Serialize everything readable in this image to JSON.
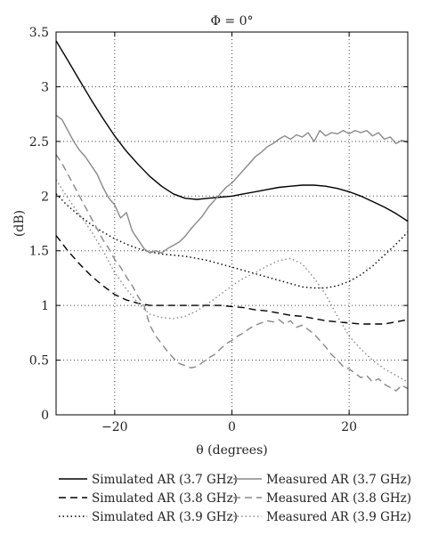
{
  "chart_data": {
    "type": "line",
    "title": "Φ = 0°",
    "xlabel": "θ (degrees)",
    "ylabel": "(dB)",
    "xlim": [
      -30,
      30
    ],
    "ylim": [
      0,
      3.5
    ],
    "xticks": [
      -20,
      0,
      20
    ],
    "xtick_labels": [
      "−20",
      "0",
      "20"
    ],
    "yticks": [
      0,
      0.5,
      1,
      1.5,
      2,
      2.5,
      3,
      3.5
    ],
    "ytick_labels": [
      "0",
      "0.5",
      "1",
      "1.5",
      "2",
      "2.5",
      "3",
      "3.5"
    ],
    "grid": true,
    "legend_position": "bottom",
    "series": [
      {
        "name": "Simulated AR (3.7 GHz)",
        "color": "#000000",
        "dash": "solid",
        "x": [
          -30,
          -28,
          -26,
          -24,
          -22,
          -20,
          -18,
          -16,
          -14,
          -12,
          -10,
          -8,
          -6,
          -4,
          -2,
          0,
          2,
          4,
          6,
          8,
          10,
          12,
          14,
          16,
          18,
          20,
          22,
          24,
          26,
          28,
          30
        ],
        "y": [
          3.42,
          3.24,
          3.06,
          2.88,
          2.71,
          2.55,
          2.41,
          2.29,
          2.18,
          2.09,
          2.02,
          1.98,
          1.97,
          1.98,
          1.99,
          2.0,
          2.02,
          2.04,
          2.06,
          2.08,
          2.09,
          2.1,
          2.1,
          2.09,
          2.07,
          2.04,
          2.0,
          1.95,
          1.9,
          1.84,
          1.77
        ]
      },
      {
        "name": "Simulated AR (3.8 GHz)",
        "color": "#000000",
        "dash": "dashed",
        "x": [
          -30,
          -28,
          -26,
          -24,
          -22,
          -20,
          -18,
          -16,
          -14,
          -12,
          -10,
          -8,
          -6,
          -4,
          -2,
          0,
          2,
          4,
          6,
          8,
          10,
          12,
          14,
          16,
          18,
          20,
          22,
          24,
          26,
          28,
          30
        ],
        "y": [
          1.64,
          1.5,
          1.38,
          1.27,
          1.18,
          1.1,
          1.05,
          1.02,
          1.0,
          1.0,
          1.0,
          1.0,
          1.0,
          1.0,
          1.0,
          0.99,
          0.98,
          0.96,
          0.95,
          0.93,
          0.91,
          0.9,
          0.88,
          0.86,
          0.85,
          0.84,
          0.83,
          0.83,
          0.83,
          0.85,
          0.87
        ]
      },
      {
        "name": "Simulated AR (3.9 GHz)",
        "color": "#000000",
        "dash": "dotted",
        "x": [
          -30,
          -28,
          -26,
          -24,
          -22,
          -20,
          -18,
          -16,
          -14,
          -12,
          -10,
          -8,
          -6,
          -4,
          -2,
          0,
          2,
          4,
          6,
          8,
          10,
          12,
          14,
          16,
          18,
          20,
          22,
          24,
          26,
          28,
          30
        ],
        "y": [
          2.02,
          1.91,
          1.82,
          1.74,
          1.67,
          1.61,
          1.56,
          1.52,
          1.49,
          1.47,
          1.46,
          1.45,
          1.43,
          1.41,
          1.38,
          1.35,
          1.32,
          1.29,
          1.26,
          1.23,
          1.2,
          1.17,
          1.16,
          1.16,
          1.18,
          1.22,
          1.28,
          1.36,
          1.46,
          1.56,
          1.67
        ]
      },
      {
        "name": "Measured AR (3.7 GHz)",
        "color": "#888888",
        "dash": "solid",
        "x": [
          -30,
          -29,
          -28,
          -27,
          -26,
          -25,
          -24,
          -23,
          -22,
          -21,
          -20,
          -19,
          -18,
          -17,
          -16,
          -15,
          -14,
          -13,
          -12,
          -11,
          -10,
          -9,
          -8,
          -7,
          -6,
          -5,
          -4,
          -3,
          -2,
          -1,
          0,
          1,
          2,
          3,
          4,
          5,
          6,
          7,
          8,
          9,
          10,
          11,
          12,
          13,
          14,
          15,
          16,
          17,
          18,
          19,
          20,
          21,
          22,
          23,
          24,
          25,
          26,
          27,
          28,
          29,
          30
        ],
        "y": [
          2.74,
          2.7,
          2.6,
          2.5,
          2.42,
          2.36,
          2.28,
          2.2,
          2.08,
          1.98,
          1.92,
          1.8,
          1.85,
          1.68,
          1.6,
          1.52,
          1.48,
          1.5,
          1.48,
          1.52,
          1.55,
          1.58,
          1.63,
          1.7,
          1.76,
          1.82,
          1.9,
          1.96,
          2.02,
          2.08,
          2.12,
          2.18,
          2.24,
          2.3,
          2.36,
          2.4,
          2.45,
          2.48,
          2.52,
          2.55,
          2.52,
          2.56,
          2.54,
          2.58,
          2.5,
          2.6,
          2.55,
          2.58,
          2.57,
          2.6,
          2.57,
          2.6,
          2.58,
          2.6,
          2.55,
          2.58,
          2.52,
          2.54,
          2.48,
          2.51,
          2.49
        ]
      },
      {
        "name": "Measured AR (3.8 GHz)",
        "color": "#888888",
        "dash": "dashed",
        "x": [
          -30,
          -29,
          -28,
          -27,
          -26,
          -25,
          -24,
          -23,
          -22,
          -21,
          -20,
          -19,
          -18,
          -17,
          -16,
          -15,
          -14,
          -13,
          -12,
          -11,
          -10,
          -9,
          -8,
          -7,
          -6,
          -5,
          -4,
          -3,
          -2,
          -1,
          0,
          1,
          2,
          3,
          4,
          5,
          6,
          7,
          8,
          9,
          10,
          11,
          12,
          13,
          14,
          15,
          16,
          17,
          18,
          19,
          20,
          21,
          22,
          23,
          24,
          25,
          26,
          27,
          28,
          29,
          30
        ],
        "y": [
          2.38,
          2.3,
          2.2,
          2.1,
          2.0,
          1.9,
          1.8,
          1.7,
          1.6,
          1.52,
          1.42,
          1.35,
          1.26,
          1.18,
          1.08,
          1.0,
          0.82,
          0.72,
          0.65,
          0.58,
          0.52,
          0.47,
          0.45,
          0.43,
          0.44,
          0.48,
          0.52,
          0.55,
          0.6,
          0.65,
          0.68,
          0.72,
          0.75,
          0.79,
          0.82,
          0.84,
          0.86,
          0.85,
          0.87,
          0.83,
          0.86,
          0.8,
          0.82,
          0.78,
          0.74,
          0.68,
          0.62,
          0.55,
          0.5,
          0.44,
          0.42,
          0.38,
          0.34,
          0.36,
          0.3,
          0.33,
          0.28,
          0.25,
          0.22,
          0.27,
          0.24
        ]
      },
      {
        "name": "Measured AR (3.9 GHz)",
        "color": "#888888",
        "dash": "dotted",
        "x": [
          -30,
          -28,
          -26,
          -24,
          -22,
          -20,
          -18,
          -16,
          -14,
          -12,
          -10,
          -8,
          -6,
          -4,
          -2,
          0,
          2,
          4,
          6,
          8,
          10,
          12,
          14,
          16,
          18,
          20,
          22,
          24,
          26,
          28,
          30
        ],
        "y": [
          2.15,
          1.98,
          1.83,
          1.68,
          1.5,
          1.3,
          1.15,
          1.02,
          0.92,
          0.89,
          0.88,
          0.9,
          0.95,
          1.02,
          1.1,
          1.18,
          1.25,
          1.3,
          1.36,
          1.41,
          1.43,
          1.38,
          1.25,
          1.1,
          0.9,
          0.72,
          0.6,
          0.5,
          0.42,
          0.36,
          0.3
        ]
      }
    ]
  }
}
